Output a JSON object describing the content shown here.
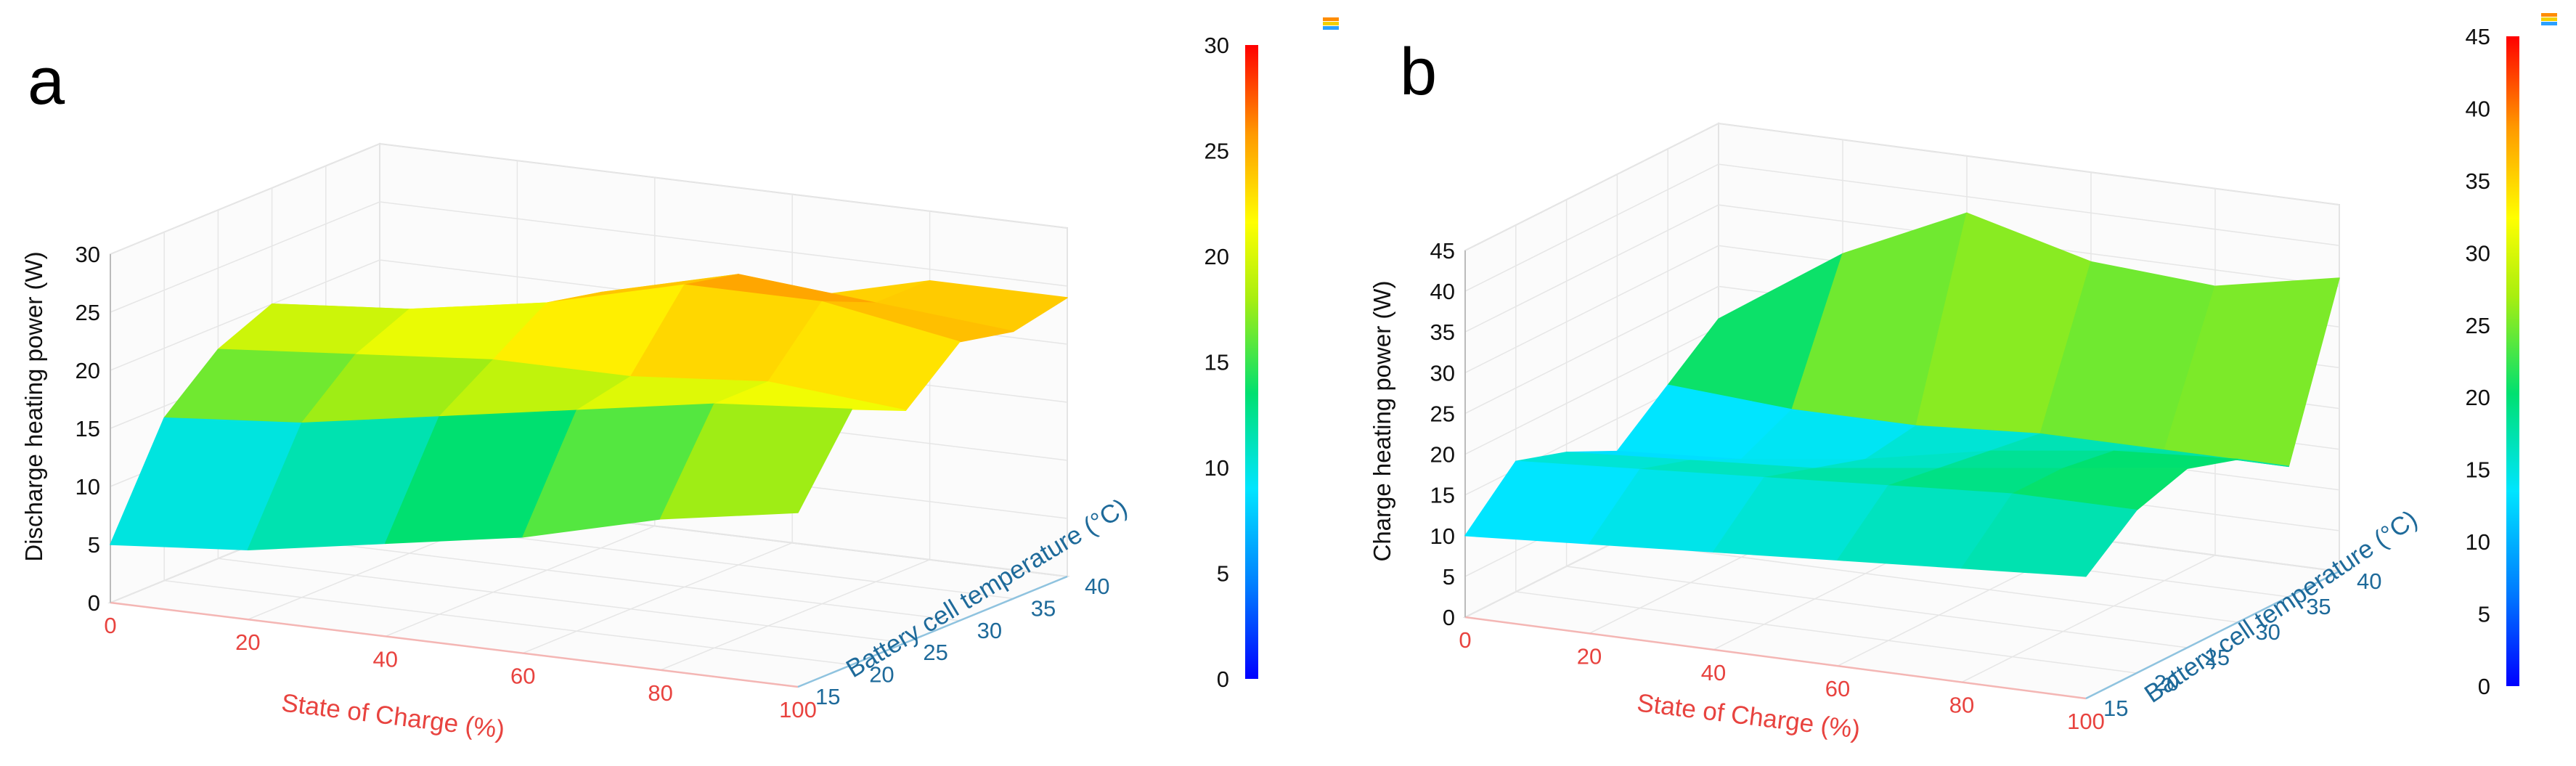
{
  "chart_data": [
    {
      "panel": "a",
      "type": "surface",
      "zlabel": "Discharge heating power (W)",
      "xlabel": "State of Charge (%)",
      "ylabel": "Battery cell temperature (°C)",
      "x_ticks": [
        "0",
        "20",
        "40",
        "60",
        "80",
        "100"
      ],
      "y_ticks": [
        "15",
        "20",
        "25",
        "30",
        "35",
        "40"
      ],
      "z_ticks": [
        "0",
        "5",
        "10",
        "15",
        "20",
        "25",
        "30"
      ],
      "xlim": [
        0,
        100
      ],
      "ylim": [
        15,
        40
      ],
      "zlim": [
        0,
        30
      ],
      "colorbar": {
        "range": [
          0,
          30
        ],
        "ticks": [
          "0",
          "5",
          "10",
          "15",
          "20",
          "25",
          "30"
        ]
      },
      "x": [
        0,
        20,
        40,
        60,
        80,
        100
      ],
      "y": [
        15,
        20,
        25,
        30,
        35,
        40
      ],
      "z": [
        [
          5,
          6,
          8,
          10,
          13,
          15
        ],
        [
          14,
          15,
          17,
          19,
          21,
          22
        ],
        [
          18,
          19,
          20,
          20,
          21,
          20
        ],
        [
          20,
          21,
          23,
          26,
          26,
          24
        ],
        [
          17,
          18,
          22,
          25,
          24,
          23
        ],
        [
          14,
          15,
          19,
          21,
          24,
          24
        ]
      ]
    },
    {
      "panel": "b",
      "type": "surface",
      "zlabel": "Charge heating power (W)",
      "xlabel": "State of Charge (%)",
      "ylabel": "Battery cell temperature (°C)",
      "x_ticks": [
        "0",
        "20",
        "40",
        "60",
        "80",
        "100"
      ],
      "y_ticks": [
        "15",
        "20",
        "25",
        "30",
        "35",
        "40"
      ],
      "z_ticks": [
        "0",
        "5",
        "10",
        "15",
        "20",
        "25",
        "30",
        "35",
        "40",
        "45"
      ],
      "xlim": [
        0,
        100
      ],
      "ylim": [
        15,
        40
      ],
      "zlim": [
        0,
        45
      ],
      "colorbar": {
        "range": [
          0,
          45
        ],
        "ticks": [
          "0",
          "5",
          "10",
          "15",
          "20",
          "25",
          "30",
          "35",
          "40",
          "45"
        ]
      },
      "x": [
        0,
        20,
        40,
        60,
        80,
        100
      ],
      "y": [
        15,
        20,
        25,
        30,
        35,
        40
      ],
      "z": [
        [
          10,
          11,
          12,
          13,
          14,
          15
        ],
        [
          16,
          17,
          18,
          19,
          20,
          20
        ],
        [
          14,
          15,
          16,
          18,
          20,
          22
        ],
        [
          11,
          12,
          14,
          17,
          19,
          20
        ],
        [
          16,
          15,
          15,
          16,
          16,
          16
        ],
        [
          21,
          31,
          38,
          34,
          33,
          36
        ]
      ]
    }
  ]
}
